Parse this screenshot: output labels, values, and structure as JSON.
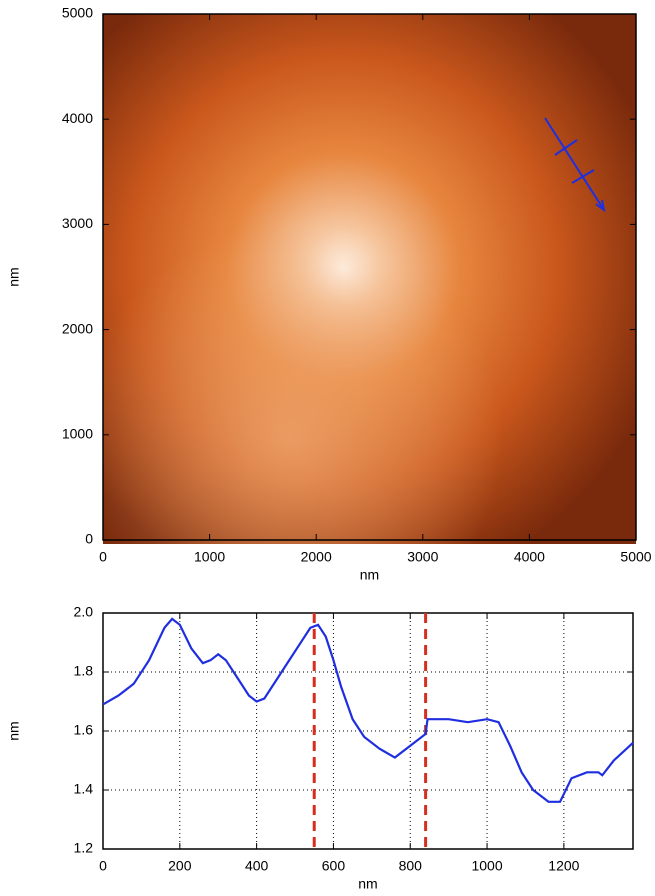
{
  "chart_data": [
    {
      "type": "image",
      "xlabel": "nm",
      "ylabel": "nm",
      "xlim": [
        0,
        5000
      ],
      "ylim": [
        0,
        5000
      ],
      "xticks": [
        0,
        1000,
        2000,
        3000,
        4000,
        5000
      ],
      "yticks": [
        0,
        1000,
        2000,
        3000,
        4000,
        5000
      ]
    },
    {
      "type": "line",
      "xlabel": "nm",
      "ylabel": "nm",
      "xlim": [
        0,
        1380
      ],
      "ylim": [
        1.2,
        2.0
      ],
      "xticks": [
        0,
        200,
        400,
        600,
        800,
        1000,
        1200
      ],
      "yticks": [
        1.2,
        1.4,
        1.6,
        1.8,
        {
          "value": 2.0,
          "label": "2.0"
        }
      ],
      "grid": true,
      "x": [
        0,
        40,
        80,
        120,
        160,
        180,
        200,
        230,
        260,
        280,
        300,
        320,
        350,
        380,
        400,
        420,
        450,
        480,
        510,
        540,
        560,
        580,
        600,
        620,
        650,
        680,
        720,
        760,
        800,
        840,
        845,
        900,
        950,
        1000,
        1030,
        1060,
        1090,
        1120,
        1160,
        1190,
        1220,
        1260,
        1290,
        1300,
        1330,
        1380
      ],
      "series": [
        {
          "color": "#1f2fe0",
          "values": [
            1.69,
            1.72,
            1.76,
            1.84,
            1.95,
            1.98,
            1.96,
            1.88,
            1.83,
            1.84,
            1.86,
            1.84,
            1.78,
            1.72,
            1.7,
            1.71,
            1.77,
            1.83,
            1.89,
            1.95,
            1.96,
            1.92,
            1.84,
            1.75,
            1.64,
            1.58,
            1.54,
            1.51,
            1.55,
            1.59,
            1.64,
            1.64,
            1.63,
            1.64,
            1.63,
            1.55,
            1.46,
            1.4,
            1.36,
            1.36,
            1.44,
            1.46,
            1.46,
            1.45,
            1.5,
            1.56
          ]
        }
      ],
      "vlines": [
        550,
        840
      ],
      "vline_color": "#d6301c"
    }
  ]
}
